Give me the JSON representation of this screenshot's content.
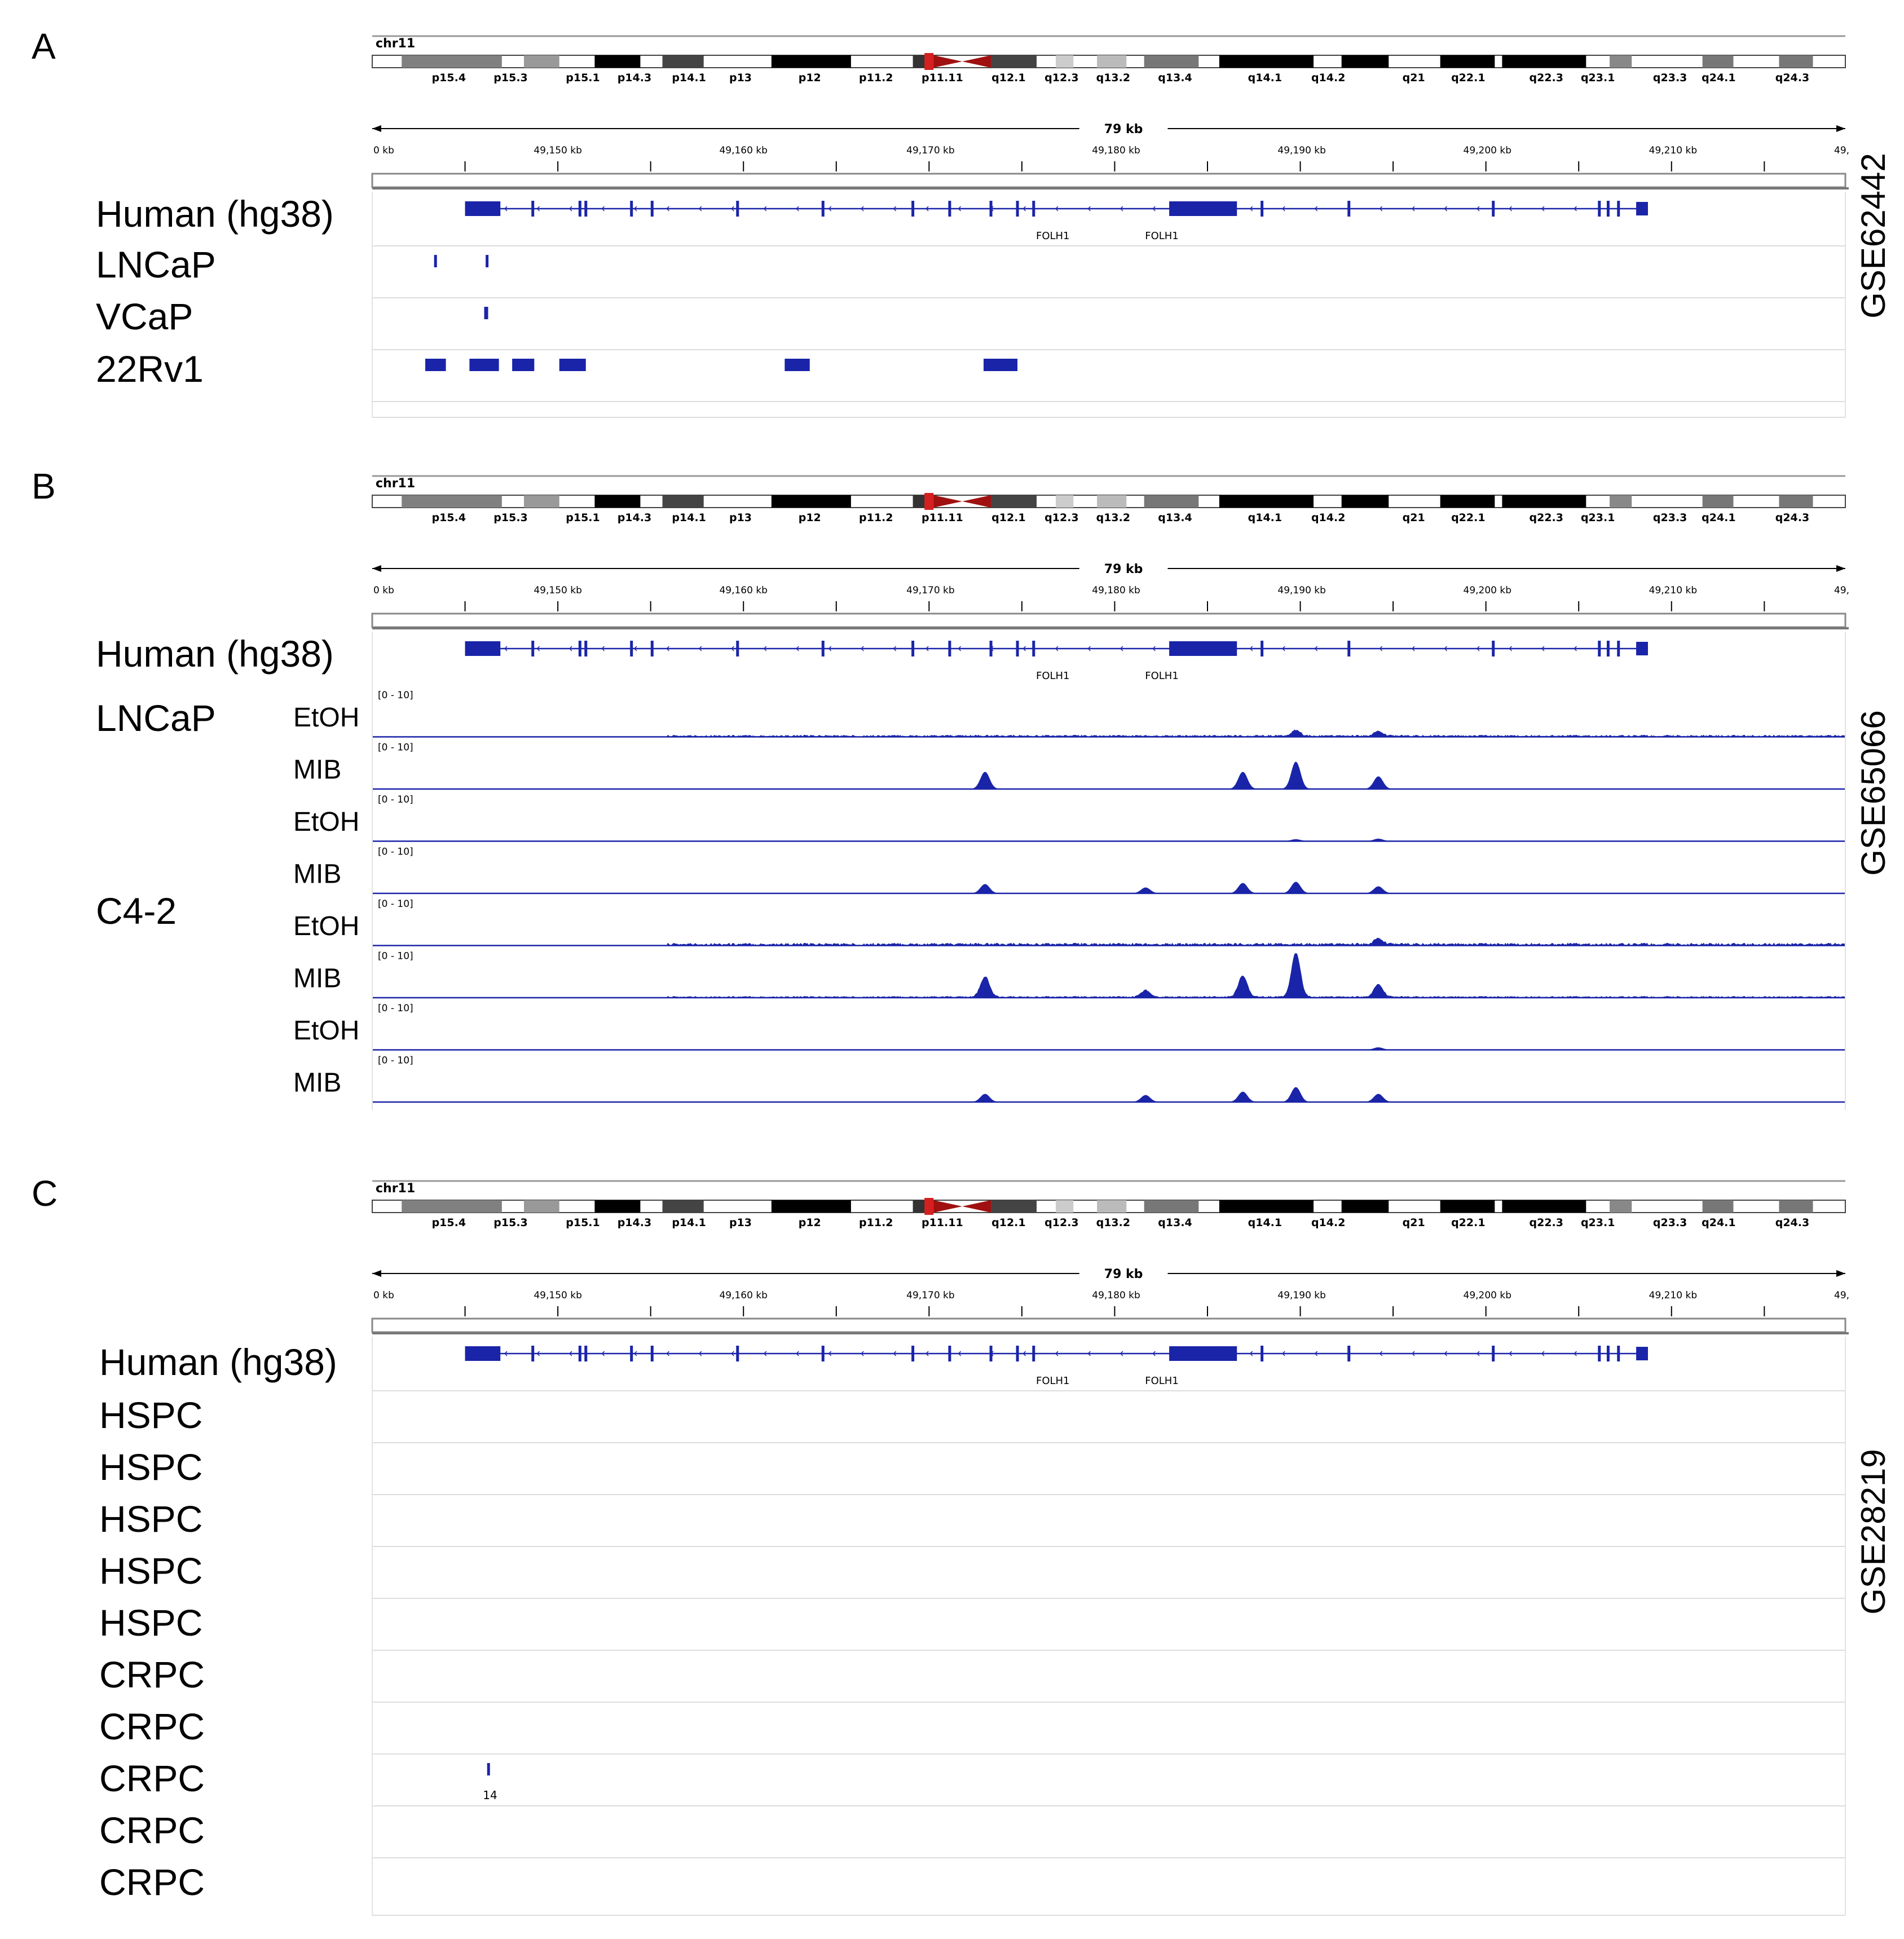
{
  "figure": {
    "chromosome": {
      "name": "chr11",
      "bands": [
        "p15.4",
        "p15.3",
        "p15.1",
        "p14.3",
        "p14.1",
        "p13",
        "p12",
        "p11.2",
        "p11.11",
        "q12.1",
        "q12.3",
        "q13.2",
        "q13.4",
        "q14.1",
        "q14.2",
        "q21",
        "q22.1",
        "q22.3",
        "q23.1",
        "q23.3",
        "q24.1",
        "q24.3"
      ]
    },
    "ruler": {
      "span_label": "79 kb",
      "start_label": "0 kb",
      "ticks": [
        "49,150 kb",
        "49,160 kb",
        "49,170 kb",
        "49,180 kb",
        "49,190 kb",
        "49,200 kb",
        "49,210 kb"
      ],
      "end_label": "49,"
    },
    "gene_labels": [
      "FOLH1",
      "FOLH1"
    ],
    "panels": [
      {
        "letter": "A",
        "dataset": "GSE62442",
        "genome_label": "Human (hg38)",
        "tracks": [
          {
            "label": "LNCaP",
            "type": "blocks"
          },
          {
            "label": "VCaP",
            "type": "blocks"
          },
          {
            "label": "22Rv1",
            "type": "blocks"
          }
        ]
      },
      {
        "letter": "B",
        "dataset": "GSE65066",
        "genome_label": "Human (hg38)",
        "groups": [
          "LNCaP",
          "C4-2"
        ],
        "scale_label": "[0 - 10]",
        "tracks": [
          {
            "label": "EtOH"
          },
          {
            "label": "MIB"
          },
          {
            "label": "EtOH"
          },
          {
            "label": "MIB"
          },
          {
            "label": "EtOH"
          },
          {
            "label": "MIB"
          },
          {
            "label": "EtOH"
          },
          {
            "label": "MIB"
          }
        ]
      },
      {
        "letter": "C",
        "dataset": "GSE28219",
        "genome_label": "Human (hg38)",
        "tracks": [
          {
            "label": "HSPC"
          },
          {
            "label": "HSPC"
          },
          {
            "label": "HSPC"
          },
          {
            "label": "HSPC"
          },
          {
            "label": "HSPC"
          },
          {
            "label": "CRPC"
          },
          {
            "label": "CRPC"
          },
          {
            "label": "CRPC",
            "feature_label": "14"
          },
          {
            "label": "CRPC"
          },
          {
            "label": "CRPC"
          }
        ]
      }
    ],
    "colors": {
      "track": "#1a24a8",
      "centromere": "#d42020"
    }
  }
}
